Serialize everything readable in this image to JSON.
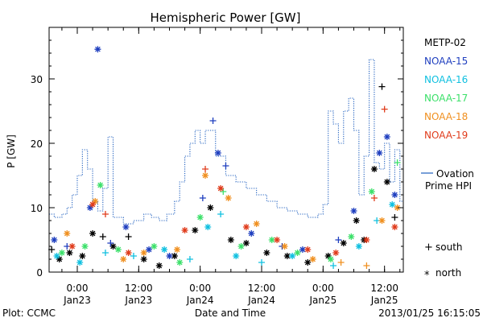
{
  "chart_data": {
    "type": "scatter",
    "title": "Hemispheric Power [GW]",
    "xlabel": "Date and Time",
    "ylabel": "P [GW]",
    "ylim": [
      0,
      38
    ],
    "xlim": [
      "2013-01-22T18:30",
      "2013-01-25T15:40"
    ],
    "y_ticks": [
      0,
      10,
      20,
      30
    ],
    "x_ticks": [
      {
        "at": "2013-01-23T00:00",
        "time": "0:00",
        "date": "Jan23"
      },
      {
        "at": "2013-01-23T12:00",
        "time": "12:00",
        "date": "Jan23"
      },
      {
        "at": "2013-01-24T00:00",
        "time": "0:00",
        "date": "Jan24"
      },
      {
        "at": "2013-01-24T12:00",
        "time": "12:00",
        "date": "Jan24"
      },
      {
        "at": "2013-01-25T00:00",
        "time": "0:00",
        "date": "Jan25"
      },
      {
        "at": "2013-01-25T12:00",
        "time": "12:00",
        "date": "Jan25"
      }
    ],
    "grid": false,
    "legend_position": "right",
    "markers_legend": [
      {
        "symbol": "+",
        "label": "south"
      },
      {
        "symbol": "*",
        "label": "north"
      }
    ],
    "series": [
      {
        "name": "METP-02",
        "color": "#000000",
        "points": [
          [
            "2013-01-22T19:00",
            3.5,
            "+"
          ],
          [
            "2013-01-22T20:30",
            2.0,
            "*"
          ],
          [
            "2013-01-22T22:30",
            3.0,
            "*"
          ],
          [
            "2013-01-23T01:00",
            2.5,
            "*"
          ],
          [
            "2013-01-23T03:00",
            6.0,
            "*"
          ],
          [
            "2013-01-23T05:00",
            5.5,
            "+"
          ],
          [
            "2013-01-23T07:00",
            4.0,
            "*"
          ],
          [
            "2013-01-23T10:00",
            5.5,
            "+"
          ],
          [
            "2013-01-23T13:00",
            2.0,
            "*"
          ],
          [
            "2013-01-23T16:00",
            1.0,
            "*"
          ],
          [
            "2013-01-23T19:00",
            2.5,
            "*"
          ],
          [
            "2013-01-23T23:00",
            6.5,
            "*"
          ],
          [
            "2013-01-24T02:00",
            10.0,
            "*"
          ],
          [
            "2013-01-24T06:00",
            5.0,
            "*"
          ],
          [
            "2013-01-24T09:00",
            4.5,
            "*"
          ],
          [
            "2013-01-24T13:00",
            3.0,
            "*"
          ],
          [
            "2013-01-24T17:00",
            2.5,
            "*"
          ],
          [
            "2013-01-24T21:00",
            1.5,
            "*"
          ],
          [
            "2013-01-25T01:00",
            2.5,
            "*"
          ],
          [
            "2013-01-25T04:00",
            4.5,
            "*"
          ],
          [
            "2013-01-25T06:30",
            8.0,
            "*"
          ],
          [
            "2013-01-25T08:00",
            5.0,
            "*"
          ],
          [
            "2013-01-25T10:00",
            16.0,
            "*"
          ],
          [
            "2013-01-25T11:30",
            28.8,
            "+"
          ],
          [
            "2013-01-25T12:30",
            14.0,
            "*"
          ],
          [
            "2013-01-25T14:00",
            8.5,
            "+"
          ]
        ]
      },
      {
        "name": "NOAA-15",
        "color": "#1f3fbf",
        "points": [
          [
            "2013-01-22T19:30",
            5.0,
            "*"
          ],
          [
            "2013-01-22T22:00",
            4.0,
            "+"
          ],
          [
            "2013-01-23T02:30",
            10.0,
            "*"
          ],
          [
            "2013-01-23T04:00",
            34.6,
            "*"
          ],
          [
            "2013-01-23T06:30",
            4.5,
            "+"
          ],
          [
            "2013-01-23T09:30",
            7.0,
            "*"
          ],
          [
            "2013-01-23T14:00",
            3.5,
            "*"
          ],
          [
            "2013-01-23T18:00",
            2.5,
            "*"
          ],
          [
            "2013-01-24T00:30",
            11.5,
            "+"
          ],
          [
            "2013-01-24T02:30",
            23.5,
            "+"
          ],
          [
            "2013-01-24T03:30",
            18.5,
            "*"
          ],
          [
            "2013-01-24T05:00",
            16.5,
            "+"
          ],
          [
            "2013-01-24T10:00",
            6.0,
            "*"
          ],
          [
            "2013-01-24T16:00",
            4.0,
            "+"
          ],
          [
            "2013-01-24T20:00",
            3.5,
            "*"
          ],
          [
            "2013-01-25T03:00",
            5.0,
            "+"
          ],
          [
            "2013-01-25T06:00",
            9.5,
            "*"
          ],
          [
            "2013-01-25T11:00",
            18.5,
            "*"
          ],
          [
            "2013-01-25T12:30",
            21.0,
            "*"
          ],
          [
            "2013-01-25T14:00",
            12.0,
            "*"
          ]
        ]
      },
      {
        "name": "NOAA-16",
        "color": "#10c0e0",
        "points": [
          [
            "2013-01-22T20:00",
            2.5,
            "*"
          ],
          [
            "2013-01-23T00:30",
            1.5,
            "*"
          ],
          [
            "2013-01-23T05:30",
            3.0,
            "+"
          ],
          [
            "2013-01-23T11:00",
            2.5,
            "+"
          ],
          [
            "2013-01-23T17:00",
            3.5,
            "*"
          ],
          [
            "2013-01-23T22:00",
            2.0,
            "+"
          ],
          [
            "2013-01-24T01:30",
            7.0,
            "*"
          ],
          [
            "2013-01-24T04:00",
            9.0,
            "+"
          ],
          [
            "2013-01-24T07:00",
            2.5,
            "*"
          ],
          [
            "2013-01-24T12:00",
            1.5,
            "+"
          ],
          [
            "2013-01-24T18:00",
            2.5,
            "*"
          ],
          [
            "2013-01-25T02:00",
            1.0,
            "+"
          ],
          [
            "2013-01-25T07:00",
            4.0,
            "*"
          ],
          [
            "2013-01-25T10:30",
            8.0,
            "+"
          ],
          [
            "2013-01-25T13:30",
            10.5,
            "*"
          ]
        ]
      },
      {
        "name": "NOAA-17",
        "color": "#3ce06a",
        "points": [
          [
            "2013-01-22T21:00",
            3.0,
            "*"
          ],
          [
            "2013-01-23T01:30",
            4.0,
            "*"
          ],
          [
            "2013-01-23T04:30",
            13.5,
            "*"
          ],
          [
            "2013-01-23T08:00",
            3.5,
            "*"
          ],
          [
            "2013-01-23T15:00",
            4.0,
            "*"
          ],
          [
            "2013-01-23T20:00",
            1.5,
            "*"
          ],
          [
            "2013-01-24T00:00",
            8.5,
            "*"
          ],
          [
            "2013-01-24T04:30",
            12.5,
            "+"
          ],
          [
            "2013-01-24T08:00",
            4.0,
            "*"
          ],
          [
            "2013-01-24T14:00",
            5.0,
            "*"
          ],
          [
            "2013-01-24T19:00",
            3.0,
            "*"
          ],
          [
            "2013-01-25T01:30",
            2.0,
            "*"
          ],
          [
            "2013-01-25T05:30",
            5.5,
            "*"
          ],
          [
            "2013-01-25T09:30",
            12.5,
            "*"
          ],
          [
            "2013-01-25T14:30",
            17.0,
            "+"
          ]
        ]
      },
      {
        "name": "NOAA-18",
        "color": "#f09020",
        "points": [
          [
            "2013-01-22T22:00",
            6.0,
            "*"
          ],
          [
            "2013-01-23T03:30",
            11.0,
            "*"
          ],
          [
            "2013-01-23T09:00",
            2.0,
            "*"
          ],
          [
            "2013-01-23T13:00",
            3.0,
            "*"
          ],
          [
            "2013-01-23T19:30",
            3.5,
            "*"
          ],
          [
            "2013-01-24T01:00",
            15.0,
            "*"
          ],
          [
            "2013-01-24T05:30",
            11.5,
            "*"
          ],
          [
            "2013-01-24T11:00",
            7.5,
            "*"
          ],
          [
            "2013-01-24T16:30",
            4.0,
            "*"
          ],
          [
            "2013-01-24T22:00",
            2.0,
            "*"
          ],
          [
            "2013-01-25T03:30",
            1.5,
            "+"
          ],
          [
            "2013-01-25T08:30",
            1.0,
            "+"
          ],
          [
            "2013-01-25T11:30",
            8.0,
            "*"
          ],
          [
            "2013-01-25T14:30",
            10.0,
            "*"
          ]
        ]
      },
      {
        "name": "NOAA-19",
        "color": "#e03c1c",
        "points": [
          [
            "2013-01-22T23:00",
            4.0,
            "*"
          ],
          [
            "2013-01-23T03:00",
            10.5,
            "*"
          ],
          [
            "2013-01-23T05:30",
            9.0,
            "+"
          ],
          [
            "2013-01-23T10:00",
            3.0,
            "*"
          ],
          [
            "2013-01-23T21:00",
            6.5,
            "*"
          ],
          [
            "2013-01-24T01:00",
            16.0,
            "+"
          ],
          [
            "2013-01-24T04:00",
            13.0,
            "*"
          ],
          [
            "2013-01-24T09:00",
            7.0,
            "*"
          ],
          [
            "2013-01-24T15:00",
            5.0,
            "*"
          ],
          [
            "2013-01-24T21:00",
            3.5,
            "*"
          ],
          [
            "2013-01-25T02:30",
            3.0,
            "*"
          ],
          [
            "2013-01-25T08:30",
            5.0,
            "*"
          ],
          [
            "2013-01-25T10:00",
            11.5,
            "+"
          ],
          [
            "2013-01-25T12:00",
            25.3,
            "+"
          ],
          [
            "2013-01-25T14:00",
            7.0,
            "*"
          ]
        ]
      }
    ],
    "ovation": {
      "name_line1": "Ovation",
      "name_line2": "Prime HPI",
      "color": "#1f5fbf",
      "steps": [
        [
          "2013-01-22T18:30",
          9.0
        ],
        [
          "2013-01-22T19:30",
          8.5
        ],
        [
          "2013-01-22T21:00",
          9.0
        ],
        [
          "2013-01-22T22:00",
          10.0
        ],
        [
          "2013-01-22T23:00",
          12.0
        ],
        [
          "2013-01-23T00:00",
          15.0
        ],
        [
          "2013-01-23T01:00",
          19.0
        ],
        [
          "2013-01-23T02:00",
          16.0
        ],
        [
          "2013-01-23T03:00",
          11.0
        ],
        [
          "2013-01-23T04:00",
          9.5
        ],
        [
          "2013-01-23T05:00",
          13.0
        ],
        [
          "2013-01-23T06:00",
          21.0
        ],
        [
          "2013-01-23T07:00",
          8.5
        ],
        [
          "2013-01-23T09:00",
          7.5
        ],
        [
          "2013-01-23T11:00",
          8.0
        ],
        [
          "2013-01-23T13:00",
          9.0
        ],
        [
          "2013-01-23T14:30",
          8.5
        ],
        [
          "2013-01-23T16:00",
          8.0
        ],
        [
          "2013-01-23T17:30",
          9.0
        ],
        [
          "2013-01-23T19:00",
          11.0
        ],
        [
          "2013-01-23T20:00",
          14.0
        ],
        [
          "2013-01-23T21:00",
          18.0
        ],
        [
          "2013-01-23T22:00",
          20.0
        ],
        [
          "2013-01-23T23:00",
          22.0
        ],
        [
          "2013-01-24T00:00",
          20.0
        ],
        [
          "2013-01-24T01:00",
          22.0
        ],
        [
          "2013-01-24T03:00",
          18.0
        ],
        [
          "2013-01-24T05:00",
          15.0
        ],
        [
          "2013-01-24T07:00",
          14.0
        ],
        [
          "2013-01-24T09:00",
          13.0
        ],
        [
          "2013-01-24T11:00",
          12.0
        ],
        [
          "2013-01-24T13:00",
          11.0
        ],
        [
          "2013-01-24T15:00",
          10.0
        ],
        [
          "2013-01-24T17:00",
          9.5
        ],
        [
          "2013-01-24T19:00",
          9.0
        ],
        [
          "2013-01-24T21:00",
          8.5
        ],
        [
          "2013-01-24T23:00",
          9.0
        ],
        [
          "2013-01-25T00:00",
          10.5
        ],
        [
          "2013-01-25T01:00",
          25.0
        ],
        [
          "2013-01-25T02:00",
          23.0
        ],
        [
          "2013-01-25T03:00",
          20.0
        ],
        [
          "2013-01-25T04:00",
          25.0
        ],
        [
          "2013-01-25T05:00",
          27.0
        ],
        [
          "2013-01-25T06:00",
          22.0
        ],
        [
          "2013-01-25T07:00",
          12.0
        ],
        [
          "2013-01-25T08:00",
          18.0
        ],
        [
          "2013-01-25T09:00",
          33.0
        ],
        [
          "2013-01-25T10:00",
          17.0
        ],
        [
          "2013-01-25T11:00",
          16.0
        ],
        [
          "2013-01-25T12:00",
          20.0
        ],
        [
          "2013-01-25T13:00",
          14.0
        ],
        [
          "2013-01-25T14:00",
          19.0
        ],
        [
          "2013-01-25T15:00",
          11.0
        ],
        [
          "2013-01-25T15:40",
          11.0
        ]
      ]
    }
  },
  "footer": {
    "plot_credit": "Plot: CCMC",
    "timestamp": "2013/01/25 16:15:05"
  },
  "colors": {
    "axis": "#000000",
    "background": "#ffffff"
  }
}
